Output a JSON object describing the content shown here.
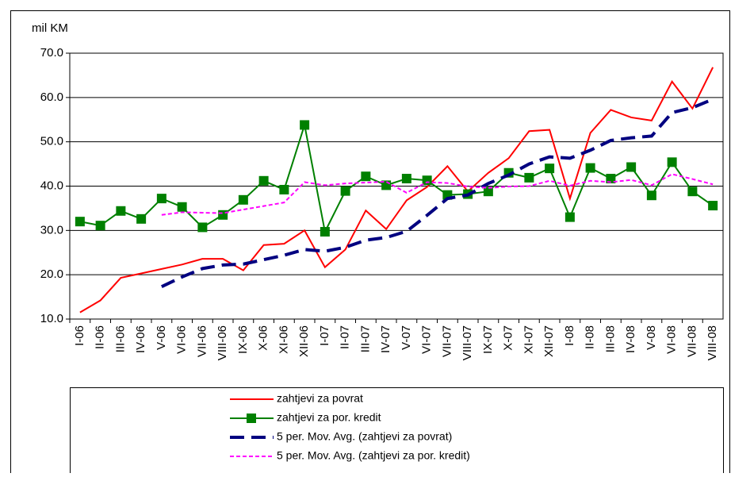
{
  "chart_data": {
    "type": "line",
    "y_label": "mil KM",
    "categories": [
      "I-06",
      "II-06",
      "III-06",
      "IV-06",
      "V-06",
      "VI-06",
      "VII-06",
      "VIII-06",
      "IX-06",
      "X-06",
      "XI-06",
      "XII-06",
      "I-07",
      "II-07",
      "III-07",
      "IV-07",
      "V-07",
      "VI-07",
      "VII-07",
      "VIII-07",
      "IX-07",
      "X-07",
      "XI-07",
      "XII-07",
      "I-08",
      "II-08",
      "III-08",
      "IV-08",
      "V-08",
      "VI-08",
      "VII-08",
      "VIII-08"
    ],
    "ylim": [
      10,
      70
    ],
    "yticks": [
      {
        "value": 10,
        "label": "10.0"
      },
      {
        "value": 20,
        "label": "20.0"
      },
      {
        "value": 30,
        "label": "30.0"
      },
      {
        "value": 40,
        "label": "40.0"
      },
      {
        "value": 50,
        "label": "50.0"
      },
      {
        "value": 60,
        "label": "60.0"
      },
      {
        "value": 70,
        "label": "70.0"
      }
    ],
    "grid": true,
    "legend": "bottom",
    "series": [
      {
        "name": "zahtjevi za povrat",
        "color": "#ff0000",
        "line_style": "solid",
        "values": [
          11.5,
          14.2,
          19.3,
          20.3,
          21.3,
          22.3,
          23.6,
          23.6,
          21.0,
          26.7,
          27.0,
          30.0,
          21.7,
          25.7,
          34.5,
          30.3,
          36.8,
          39.8,
          44.5,
          38.8,
          43.0,
          46.3,
          52.4,
          52.7,
          37.2,
          52.0,
          57.2,
          55.5,
          54.8,
          63.6,
          57.5,
          66.8
        ]
      },
      {
        "name": "zahtjevi za por. kredit",
        "color": "#008000",
        "line_style": "solid",
        "marker": "square",
        "values": [
          32.0,
          31.1,
          34.4,
          32.6,
          37.2,
          35.3,
          30.7,
          33.5,
          36.9,
          41.2,
          39.2,
          53.8,
          29.7,
          38.9,
          42.2,
          40.2,
          41.7,
          41.3,
          38.0,
          38.2,
          38.8,
          43.0,
          41.9,
          44.0,
          33.0,
          44.1,
          41.7,
          44.3,
          37.9,
          45.4,
          38.8,
          35.6
        ]
      },
      {
        "name": "5 per. Mov. Avg. (zahtjevi za povrat)",
        "color": "#000080",
        "line_style": "dashed",
        "values": [
          null,
          null,
          null,
          null,
          17.3,
          19.5,
          21.4,
          22.2,
          22.4,
          23.4,
          24.4,
          25.7,
          25.3,
          26.2,
          27.8,
          28.4,
          29.8,
          33.4,
          37.2,
          38.0,
          40.6,
          42.5,
          45.0,
          46.6,
          46.3,
          48.1,
          50.3,
          50.9,
          51.3,
          56.6,
          57.7,
          59.6
        ]
      },
      {
        "name": "5 per. Mov. Avg. (zahtjevi za por. kredit)",
        "color": "#ff00ff",
        "line_style": "dotted",
        "values": [
          null,
          null,
          null,
          null,
          33.5,
          34.1,
          34.0,
          33.9,
          34.7,
          35.5,
          36.3,
          40.9,
          40.2,
          40.6,
          40.8,
          41.0,
          38.5,
          40.9,
          40.7,
          39.9,
          39.6,
          39.9,
          40.0,
          41.2,
          40.1,
          41.2,
          40.9,
          41.4,
          40.2,
          42.7,
          41.6,
          40.4
        ]
      }
    ]
  }
}
